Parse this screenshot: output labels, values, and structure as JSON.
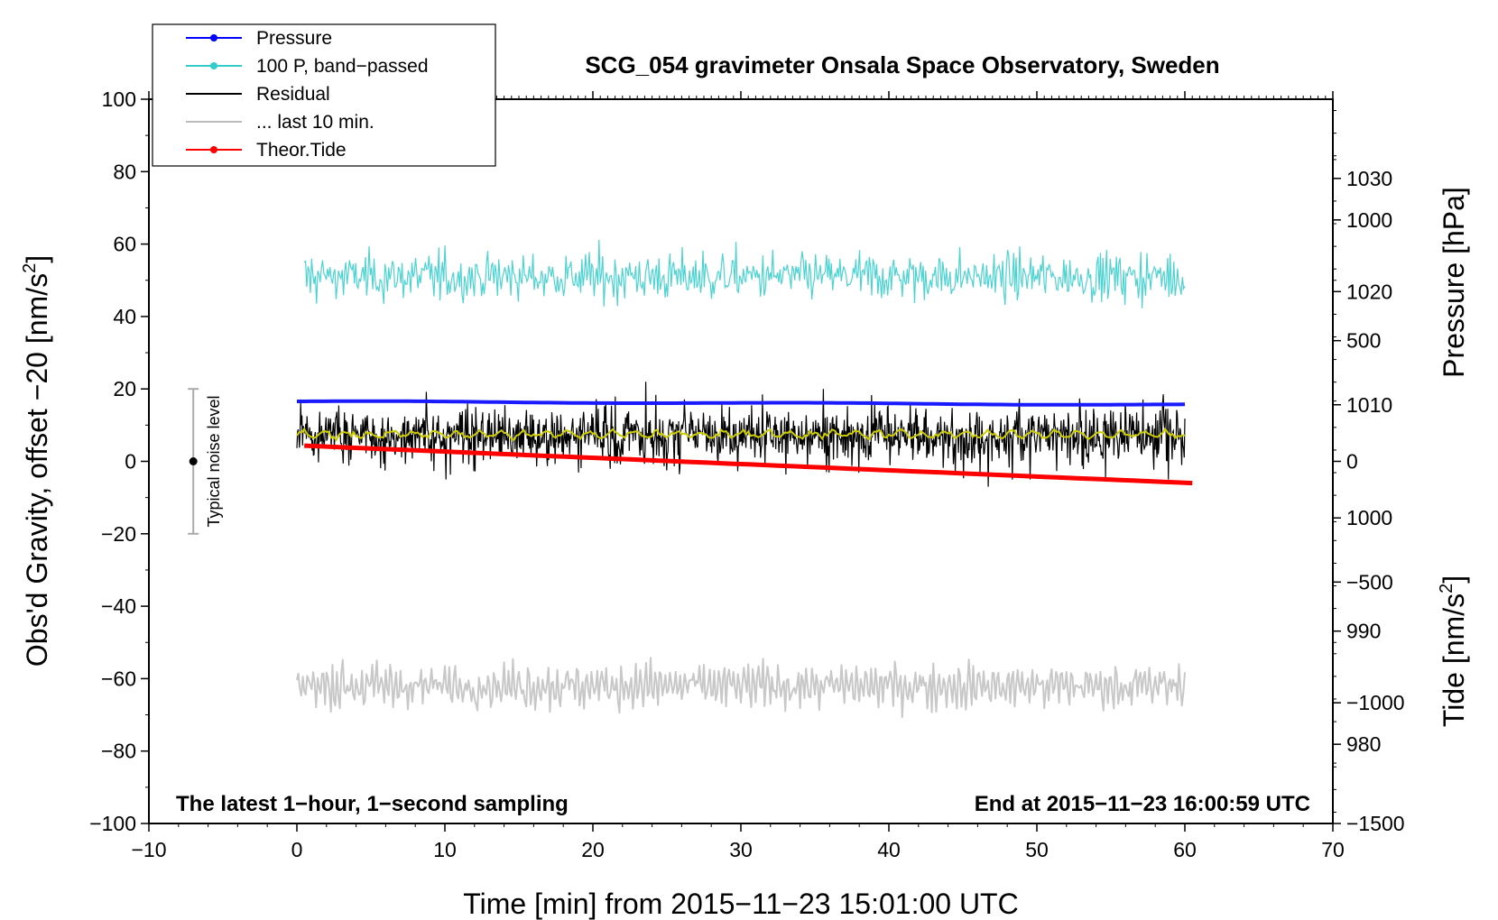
{
  "chart_data": {
    "type": "line",
    "title": "SCG_054 gravimeter Onsala Space Observatory, Sweden",
    "xlabel": "Time [min] from 2015−11−23 15:01:00 UTC",
    "ylabel_left_main": "Obs'd Gravity, offset −20 [nm/s",
    "ylabel_left_sup": "2",
    "ylabel_left_end": "]",
    "ylabel_right_pressure": "Pressure [hPa]",
    "ylabel_right_tide_main": "Tide [nm/s",
    "ylabel_right_tide_sup": "2",
    "ylabel_right_tide_end": "]",
    "xlim": [
      -10,
      70
    ],
    "ylim": [
      -100,
      100
    ],
    "pressure_lim": [
      973,
      1037
    ],
    "tide_lim": [
      -1500,
      1500
    ],
    "x_ticks": [
      -10,
      0,
      10,
      20,
      30,
      40,
      50,
      60,
      70
    ],
    "x_tick_labels": [
      "−10",
      "0",
      "10",
      "20",
      "30",
      "40",
      "50",
      "60",
      "70"
    ],
    "y_ticks": [
      -100,
      -80,
      -60,
      -40,
      -20,
      0,
      20,
      40,
      60,
      80,
      100
    ],
    "y_tick_labels": [
      "−100",
      "−80",
      "−60",
      "−40",
      "−20",
      "0",
      "20",
      "40",
      "60",
      "80",
      "100"
    ],
    "pressure_ticks": [
      980,
      990,
      1000,
      1010,
      1020,
      1030
    ],
    "pressure_tick_labels": [
      "980",
      "990",
      "1000",
      "1010",
      "1020",
      "1030"
    ],
    "tide_ticks": [
      -1500,
      -1000,
      -500,
      0,
      500,
      1000
    ],
    "tide_tick_labels": [
      "−1500",
      "−1000",
      "−500",
      "0",
      "500",
      "1000"
    ],
    "notes": {
      "left": "The latest 1−hour, 1−second sampling",
      "right": "End at 2015−11−23 16:00:59 UTC"
    },
    "noise_bar": {
      "x": -7,
      "center": 0,
      "low": -20,
      "high": 20,
      "label": "Typical noise level"
    },
    "legend": [
      {
        "label": "Pressure",
        "color": "#0000ff",
        "marker": true
      },
      {
        "label": "100 P, band−passed",
        "color": "#33cccc",
        "marker": true
      },
      {
        "label": "Residual",
        "color": "#000000",
        "marker": false
      },
      {
        "label": "... last 10 min.",
        "color": "#bbbbbb",
        "marker": false
      },
      {
        "label": "Theor.Tide",
        "color": "#ff0000",
        "marker": true
      }
    ],
    "series": [
      {
        "name": "Pressure",
        "color": "#1a1aff",
        "axis": "pressure",
        "x_range": [
          0,
          60
        ],
        "start": 1010.3,
        "end": 1010.0,
        "approx_mean": 1010.1
      },
      {
        "name": "100 P, band-passed",
        "color": "#4dd2d2",
        "axis": "gravity",
        "x_range": [
          0.5,
          60
        ],
        "approx_mean": 51,
        "approx_min": 39,
        "approx_max": 62
      },
      {
        "name": "Residual",
        "color": "#000000",
        "axis": "gravity",
        "x_range": [
          0,
          60
        ],
        "approx_mean": 7,
        "approx_min": -7,
        "approx_max": 22
      },
      {
        "name": "Residual smoothed",
        "color": "#cccc00",
        "axis": "gravity",
        "x_range": [
          0,
          60
        ],
        "approx_mean": 7.5
      },
      {
        "name": "... last 10 min.",
        "color": "#c8c8c8",
        "axis": "gravity",
        "x_range": [
          0,
          60
        ],
        "approx_mean": -62,
        "approx_min": -72,
        "approx_max": -51
      },
      {
        "name": "Theor.Tide",
        "color": "#ff0000",
        "axis": "tide",
        "x_range": [
          0.5,
          60.5
        ],
        "start": 65,
        "end": -90
      }
    ],
    "colors": {
      "pressure": "#1a1aff",
      "bandpassed": "#4dd2d2",
      "residual": "#000000",
      "smoothed": "#cccc00",
      "last10": "#c8c8c8",
      "tide": "#ff0000",
      "noise_bar": "#aaaaaa"
    }
  }
}
